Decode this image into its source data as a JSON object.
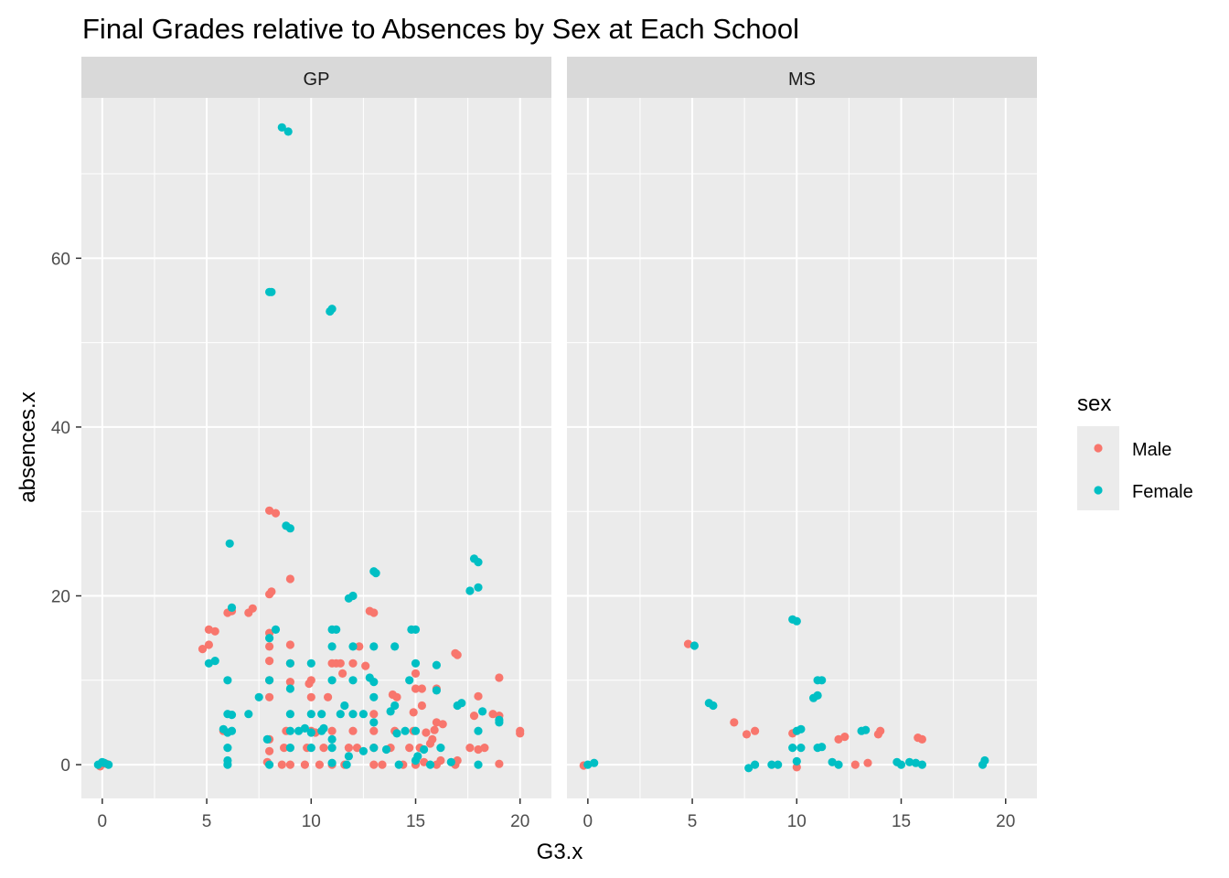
{
  "chart_data": {
    "type": "scatter",
    "title": "Final Grades relative to Absences by Sex at Each School",
    "xlabel": "G3.x",
    "ylabel": "absences.x",
    "xlim": [
      -1,
      21.5
    ],
    "ylim": [
      -4,
      79
    ],
    "x_ticks": [
      0,
      5,
      10,
      15,
      20
    ],
    "y_ticks": [
      0,
      20,
      40,
      60
    ],
    "grid": true,
    "legend": {
      "title": "sex",
      "placement": "right",
      "entries": [
        {
          "label": "Male",
          "color": "#F8766D"
        },
        {
          "label": "Female",
          "color": "#00BFC4"
        }
      ]
    },
    "panels": [
      {
        "label": "GP",
        "series": [
          {
            "name": "Male",
            "points": [
              [
                -0.1,
                -0.2
              ],
              [
                0.2,
                0.1
              ],
              [
                4.8,
                13.7
              ],
              [
                5.1,
                14.2
              ],
              [
                5.1,
                16
              ],
              [
                5.4,
                15.8
              ],
              [
                5.8,
                4
              ],
              [
                6,
                18
              ],
              [
                6.2,
                18.2
              ],
              [
                7,
                18
              ],
              [
                7.2,
                18.5
              ],
              [
                7.9,
                0.3
              ],
              [
                8,
                1.6
              ],
              [
                8,
                3
              ],
              [
                8,
                8
              ],
              [
                8,
                10
              ],
              [
                8,
                12.3
              ],
              [
                8,
                14
              ],
              [
                8,
                15.6
              ],
              [
                8,
                20.2
              ],
              [
                8.1,
                20.5
              ],
              [
                8,
                30.1
              ],
              [
                8.3,
                29.8
              ],
              [
                8.6,
                0
              ],
              [
                8.7,
                2
              ],
              [
                8.8,
                4
              ],
              [
                9,
                0
              ],
              [
                9,
                9.8
              ],
              [
                9,
                12
              ],
              [
                9,
                14.2
              ],
              [
                9,
                22
              ],
              [
                9.7,
                0
              ],
              [
                9.8,
                2
              ],
              [
                9.9,
                9.6
              ],
              [
                10,
                10
              ],
              [
                10,
                4
              ],
              [
                10,
                8
              ],
              [
                10.2,
                3.8
              ],
              [
                10.4,
                0
              ],
              [
                10.6,
                2
              ],
              [
                10.8,
                8
              ],
              [
                11,
                0
              ],
              [
                11,
                4
              ],
              [
                11,
                12
              ],
              [
                11.2,
                12
              ],
              [
                11.4,
                12
              ],
              [
                11.5,
                10.8
              ],
              [
                11.6,
                0
              ],
              [
                11.8,
                2
              ],
              [
                12,
                4
              ],
              [
                12,
                12
              ],
              [
                12.2,
                2
              ],
              [
                12.3,
                14
              ],
              [
                12.6,
                11.7
              ],
              [
                12.8,
                18.2
              ],
              [
                13,
                18
              ],
              [
                13,
                0
              ],
              [
                13,
                2
              ],
              [
                13,
                4
              ],
              [
                13,
                6
              ],
              [
                13.4,
                0
              ],
              [
                13.8,
                2
              ],
              [
                13.9,
                8.3
              ],
              [
                14,
                4
              ],
              [
                14.1,
                8
              ],
              [
                14.4,
                0
              ],
              [
                14.7,
                2
              ],
              [
                14.9,
                4
              ],
              [
                14.9,
                6.2
              ],
              [
                15,
                9
              ],
              [
                15,
                10.8
              ],
              [
                15,
                0
              ],
              [
                15.2,
                2
              ],
              [
                15.3,
                7
              ],
              [
                15.3,
                9
              ],
              [
                15.4,
                0.3
              ],
              [
                15.5,
                3.8
              ],
              [
                15.7,
                2.5
              ],
              [
                15.8,
                3
              ],
              [
                15.9,
                4.1
              ],
              [
                16,
                0
              ],
              [
                16,
                9
              ],
              [
                16,
                5
              ],
              [
                16.2,
                0.5
              ],
              [
                16.3,
                4.8
              ],
              [
                16.9,
                13.2
              ],
              [
                17,
                13
              ],
              [
                16.9,
                0
              ],
              [
                17,
                0.5
              ],
              [
                17.6,
                2
              ],
              [
                17.8,
                5.8
              ],
              [
                18,
                8.1
              ],
              [
                18,
                1.8
              ],
              [
                18.3,
                2
              ],
              [
                18.7,
                6
              ],
              [
                19,
                5.8
              ],
              [
                19,
                10.3
              ],
              [
                19,
                0.1
              ],
              [
                20,
                3.7
              ],
              [
                20,
                4
              ]
            ]
          },
          {
            "name": "Female",
            "points": [
              [
                0,
                0.3
              ],
              [
                0.3,
                0
              ],
              [
                -0.2,
                0
              ],
              [
                0.1,
                0.2
              ],
              [
                5.1,
                12
              ],
              [
                5.4,
                12.3
              ],
              [
                5.8,
                4.2
              ],
              [
                6,
                3.8
              ],
              [
                6,
                0.5
              ],
              [
                6,
                0
              ],
              [
                6,
                2
              ],
              [
                6,
                6
              ],
              [
                6,
                10
              ],
              [
                6.1,
                26.2
              ],
              [
                6.2,
                18.6
              ],
              [
                6.2,
                5.9
              ],
              [
                6.2,
                4
              ],
              [
                7,
                6
              ],
              [
                7.5,
                8
              ],
              [
                7.9,
                3
              ],
              [
                8,
                0
              ],
              [
                8,
                15
              ],
              [
                8,
                10
              ],
              [
                8.3,
                16
              ],
              [
                8.6,
                75.5
              ],
              [
                8.9,
                75
              ],
              [
                8.8,
                28.3
              ],
              [
                9,
                28
              ],
              [
                9,
                2
              ],
              [
                9,
                4
              ],
              [
                9,
                6
              ],
              [
                9,
                9
              ],
              [
                9,
                12
              ],
              [
                8,
                56
              ],
              [
                8.1,
                56
              ],
              [
                11,
                54
              ],
              [
                10.9,
                53.7
              ],
              [
                9.4,
                4
              ],
              [
                9.7,
                4.3
              ],
              [
                10,
                2
              ],
              [
                10,
                3.8
              ],
              [
                10,
                6
              ],
              [
                10,
                12
              ],
              [
                10.5,
                4
              ],
              [
                10.5,
                6
              ],
              [
                10.6,
                4.3
              ],
              [
                11,
                16
              ],
              [
                11.2,
                16
              ],
              [
                11,
                10
              ],
              [
                11,
                14
              ],
              [
                11,
                0.2
              ],
              [
                11,
                2
              ],
              [
                11,
                3
              ],
              [
                11.4,
                6
              ],
              [
                11.6,
                7
              ],
              [
                11.7,
                0
              ],
              [
                11.8,
                1
              ],
              [
                11.8,
                19.7
              ],
              [
                12,
                20
              ],
              [
                12,
                14
              ],
              [
                12,
                10
              ],
              [
                12,
                6
              ],
              [
                12.5,
                6
              ],
              [
                12.5,
                1.6
              ],
              [
                12.8,
                10.3
              ],
              [
                13,
                9.8
              ],
              [
                13,
                22.9
              ],
              [
                13.1,
                22.7
              ],
              [
                13,
                14
              ],
              [
                13,
                8
              ],
              [
                13,
                5
              ],
              [
                13,
                2
              ],
              [
                13.6,
                1.8
              ],
              [
                13.8,
                6.3
              ],
              [
                14,
                7
              ],
              [
                14,
                14
              ],
              [
                14.1,
                3.7
              ],
              [
                14.2,
                0
              ],
              [
                14.5,
                4
              ],
              [
                14.7,
                10
              ],
              [
                14.8,
                16
              ],
              [
                15,
                16
              ],
              [
                15,
                12
              ],
              [
                15,
                4
              ],
              [
                15,
                0.5
              ],
              [
                15.1,
                1
              ],
              [
                15.4,
                1.8
              ],
              [
                15.7,
                0
              ],
              [
                16,
                11.8
              ],
              [
                16,
                8.8
              ],
              [
                16.2,
                2
              ],
              [
                16.7,
                0.3
              ],
              [
                17,
                7
              ],
              [
                17.2,
                7.3
              ],
              [
                17.6,
                20.6
              ],
              [
                17.8,
                24.4
              ],
              [
                18,
                24
              ],
              [
                18,
                21
              ],
              [
                18,
                4
              ],
              [
                18.2,
                6.3
              ],
              [
                18,
                0
              ],
              [
                19,
                5
              ],
              [
                19,
                5.3
              ]
            ]
          }
        ]
      },
      {
        "label": "MS",
        "series": [
          {
            "name": "Male",
            "points": [
              [
                -0.2,
                -0.1
              ],
              [
                4.8,
                14.3
              ],
              [
                7,
                5
              ],
              [
                7.6,
                3.6
              ],
              [
                8,
                4
              ],
              [
                9.8,
                3.7
              ],
              [
                10,
                -0.3
              ],
              [
                12,
                3
              ],
              [
                12.3,
                3.3
              ],
              [
                12.8,
                0
              ],
              [
                13.4,
                0.2
              ],
              [
                13.9,
                3.6
              ],
              [
                14,
                4
              ],
              [
                15.8,
                3.2
              ],
              [
                16,
                3
              ]
            ]
          },
          {
            "name": "Female",
            "points": [
              [
                0,
                0
              ],
              [
                0.3,
                0.2
              ],
              [
                5.1,
                14.1
              ],
              [
                5.8,
                7.3
              ],
              [
                6,
                7
              ],
              [
                7.7,
                -0.4
              ],
              [
                8,
                0
              ],
              [
                8.8,
                0
              ],
              [
                9.1,
                0
              ],
              [
                9.8,
                17.2
              ],
              [
                10,
                17
              ],
              [
                9.8,
                2
              ],
              [
                10,
                4
              ],
              [
                10.2,
                4.2
              ],
              [
                10,
                0.4
              ],
              [
                10.2,
                2
              ],
              [
                10.8,
                7.9
              ],
              [
                11,
                8.2
              ],
              [
                11,
                10
              ],
              [
                11.2,
                10
              ],
              [
                11,
                2
              ],
              [
                11.2,
                2.1
              ],
              [
                11.7,
                0.3
              ],
              [
                12,
                0
              ],
              [
                13.1,
                4
              ],
              [
                13.3,
                4.1
              ],
              [
                14.8,
                0.3
              ],
              [
                15,
                0
              ],
              [
                15.4,
                0.3
              ],
              [
                15.7,
                0.2
              ],
              [
                16,
                0
              ],
              [
                18.9,
                0
              ],
              [
                19,
                0.5
              ]
            ]
          }
        ]
      }
    ]
  }
}
